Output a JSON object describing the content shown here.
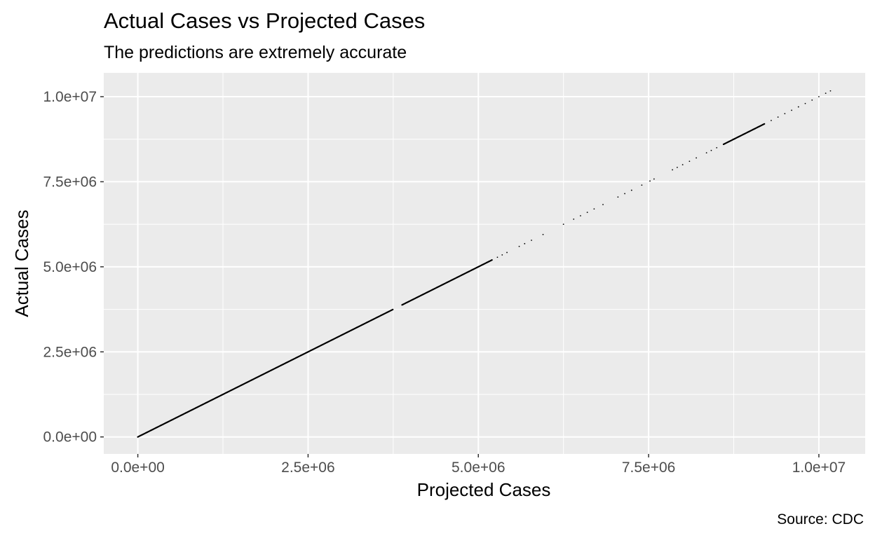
{
  "chart_data": {
    "type": "scatter",
    "title": "Actual Cases vs Projected Cases",
    "subtitle": "The predictions are extremely accurate",
    "caption": "Source: CDC",
    "xlabel": "Projected Cases",
    "ylabel": "Actual Cases",
    "xlim": [
      -500000,
      10680000
    ],
    "ylim": [
      -500000,
      10700000
    ],
    "x_ticks": [
      0,
      2500000,
      5000000,
      7500000,
      10000000
    ],
    "x_tick_labels": [
      "0.0e+00",
      "2.5e+06",
      "5.0e+06",
      "7.5e+06",
      "1.0e+07"
    ],
    "y_ticks": [
      0,
      2500000,
      5000000,
      7500000,
      10000000
    ],
    "y_tick_labels": [
      "0.0e+00",
      "2.5e+06",
      "5.0e+06",
      "7.5e+06",
      "1.0e+07"
    ],
    "grid": true,
    "series": [
      {
        "name": "cases",
        "dense_ranges": [
          [
            0,
            3750000
          ],
          [
            3880000,
            5200000
          ],
          [
            8600000,
            9200000
          ]
        ],
        "points": [
          5280000,
          5350000,
          5420000,
          5600000,
          5680000,
          5780000,
          5950000,
          6250000,
          6400000,
          6500000,
          6600000,
          6700000,
          6830000,
          7050000,
          7150000,
          7250000,
          7400000,
          7520000,
          7580000,
          7850000,
          7920000,
          8000000,
          8100000,
          8200000,
          8350000,
          8420000,
          8500000,
          9300000,
          9400000,
          9500000,
          9600000,
          9700000,
          9800000,
          9900000,
          10000000,
          10100000,
          10170000
        ]
      }
    ]
  }
}
